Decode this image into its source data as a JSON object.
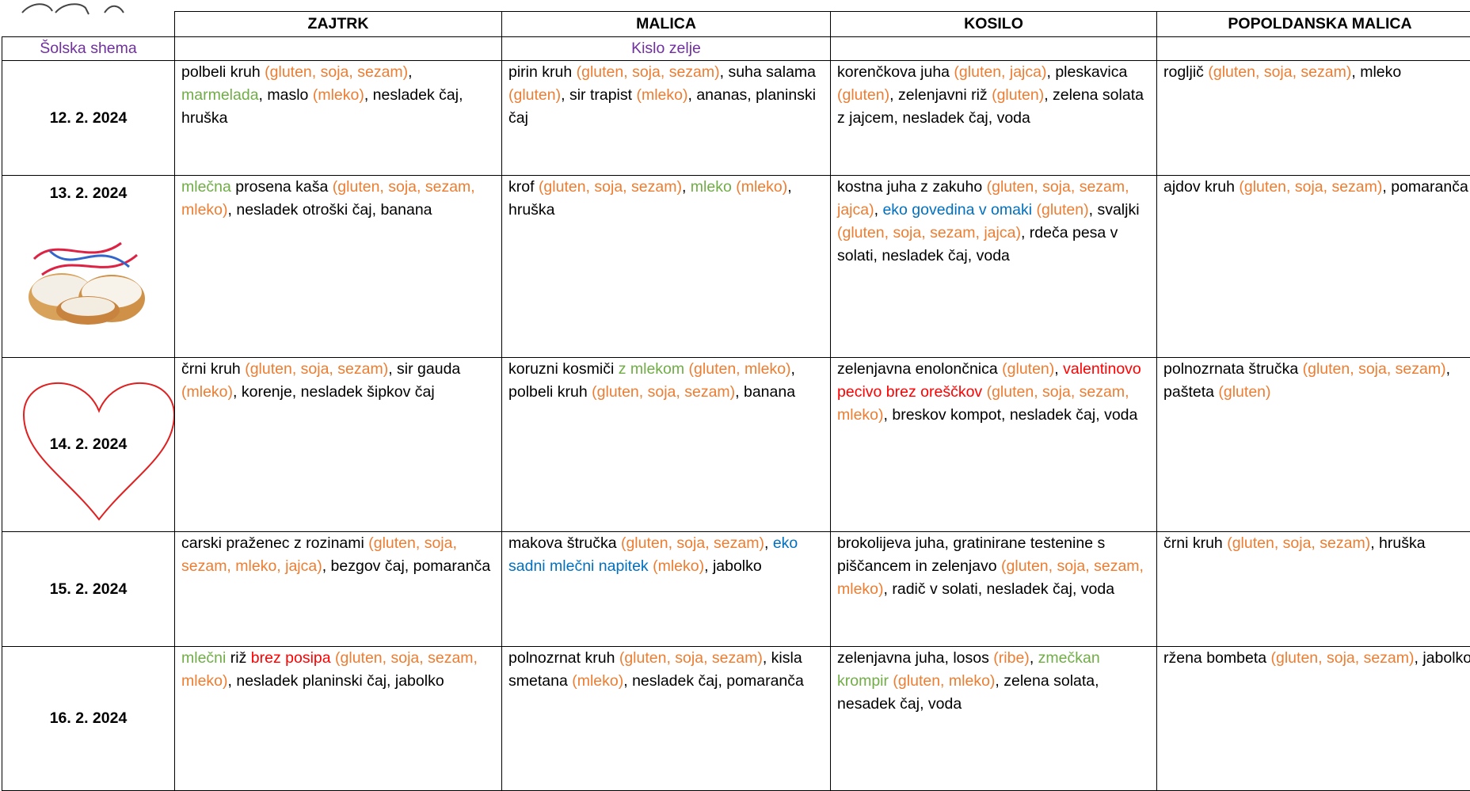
{
  "text_color": "#000000",
  "header": [
    "ZAJTRK",
    "MALICA",
    "KOSILO",
    "POPOLDANSKA MALICA"
  ],
  "scheme": {
    "label": "Šolska shema",
    "malica": "Kislo zelje",
    "color": "#7030a0"
  },
  "rows": [
    {
      "date": "12. 2. 2024",
      "cells": [
        [
          {
            "text": "polbeli kruh "
          },
          {
            "text": "(gluten, soja, sezam)",
            "color": "#ed7d31"
          },
          {
            "text": ", "
          },
          {
            "text": "marmelada",
            "color": "#70ad47"
          },
          {
            "text": ", maslo "
          },
          {
            "text": "(mleko)",
            "color": "#ed7d31"
          },
          {
            "text": ", nesladek čaj, hruška"
          }
        ],
        [
          {
            "text": "pirin kruh "
          },
          {
            "text": "(gluten, soja, sezam)",
            "color": "#ed7d31"
          },
          {
            "text": ", suha salama "
          },
          {
            "text": "(gluten)",
            "color": "#ed7d31"
          },
          {
            "text": ", sir trapist "
          },
          {
            "text": "(mleko)",
            "color": "#ed7d31"
          },
          {
            "text": ", ananas, planinski čaj"
          }
        ],
        [
          {
            "text": "korenčkova juha "
          },
          {
            "text": "(gluten, jajca)",
            "color": "#ed7d31"
          },
          {
            "text": ", pleskavica "
          },
          {
            "text": "(gluten)",
            "color": "#ed7d31"
          },
          {
            "text": ", zelenjavni riž "
          },
          {
            "text": "(gluten)",
            "color": "#ed7d31"
          },
          {
            "text": ", zelena solata z jajcem, nesladek čaj, voda"
          }
        ],
        [
          {
            "text": "rogljič "
          },
          {
            "text": "(gluten, soja, sezam)",
            "color": "#ed7d31"
          },
          {
            "text": ", mleko"
          }
        ]
      ]
    },
    {
      "date": "13. 2. 2024",
      "cells": [
        [
          {
            "text": "mlečna",
            "color": "#70ad47"
          },
          {
            "text": " prosena kaša "
          },
          {
            "text": "(gluten, soja, sezam, mleko)",
            "color": "#ed7d31"
          },
          {
            "text": ", nesladek otroški čaj, banana"
          }
        ],
        [
          {
            "text": "krof "
          },
          {
            "text": "(gluten, soja, sezam)",
            "color": "#ed7d31"
          },
          {
            "text": ", "
          },
          {
            "text": "mleko",
            "color": "#70ad47"
          },
          {
            "text": " (mleko)",
            "color": "#ed7d31"
          },
          {
            "text": ", hruška"
          }
        ],
        [
          {
            "text": "kostna juha z zakuho "
          },
          {
            "text": "(gluten, soja, sezam, jajca)",
            "color": "#ed7d31"
          },
          {
            "text": ",  "
          },
          {
            "text": "eko govedina v omaki",
            "color": "#0070c0"
          },
          {
            "text": " (gluten)",
            "color": "#ed7d31"
          },
          {
            "text": ", svaljki "
          },
          {
            "text": "(gluten, soja, sezam, jajca)",
            "color": "#ed7d31"
          },
          {
            "text": ", rdeča pesa v solati, nesladek čaj, voda"
          }
        ],
        [
          {
            "text": "ajdov kruh "
          },
          {
            "text": "(gluten, soja, sezam)",
            "color": "#ed7d31"
          },
          {
            "text": ", pomaranča"
          }
        ]
      ]
    },
    {
      "date": "14. 2. 2024",
      "cells": [
        [
          {
            "text": "črni kruh "
          },
          {
            "text": "(gluten, soja, sezam)",
            "color": "#ed7d31"
          },
          {
            "text": ", sir gauda "
          },
          {
            "text": "(mleko)",
            "color": "#ed7d31"
          },
          {
            "text": ", korenje, nesladek šipkov čaj"
          }
        ],
        [
          {
            "text": "koruzni kosmiči "
          },
          {
            "text": "z mlekom",
            "color": "#70ad47"
          },
          {
            "text": " (gluten, mleko)",
            "color": "#ed7d31"
          },
          {
            "text": ", polbeli kruh "
          },
          {
            "text": "(gluten, soja, sezam)",
            "color": "#ed7d31"
          },
          {
            "text": ", banana"
          }
        ],
        [
          {
            "text": "zelenjavna enolončnica "
          },
          {
            "text": "(gluten)",
            "color": "#ed7d31"
          },
          {
            "text": ", "
          },
          {
            "text": "valentinovo pecivo brez oreščkov",
            "color": "#ff0000"
          },
          {
            "text": " (gluten, soja, sezam, mleko)",
            "color": "#ed7d31"
          },
          {
            "text": ", breskov kompot, nesladek čaj, voda"
          }
        ],
        [
          {
            "text": "polnozrnata štručka "
          },
          {
            "text": "(gluten, soja, sezam)",
            "color": "#ed7d31"
          },
          {
            "text": ", pašteta "
          },
          {
            "text": "(gluten)",
            "color": "#ed7d31"
          }
        ]
      ]
    },
    {
      "date": "15. 2. 2024",
      "cells": [
        [
          {
            "text": "carski praženec z rozinami "
          },
          {
            "text": "(gluten, soja, sezam, mleko, jajca)",
            "color": "#ed7d31"
          },
          {
            "text": ", bezgov čaj, pomaranča"
          }
        ],
        [
          {
            "text": "makova štručka "
          },
          {
            "text": "(gluten, soja, sezam)",
            "color": "#ed7d31"
          },
          {
            "text": ", "
          },
          {
            "text": "eko sadni mlečni napitek",
            "color": "#0070c0"
          },
          {
            "text": " (mleko)",
            "color": "#ed7d31"
          },
          {
            "text": ", jabolko"
          }
        ],
        [
          {
            "text": "brokolijeva juha, gratinirane testenine s piščancem in zelenjavo "
          },
          {
            "text": "(gluten, soja, sezam, mleko)",
            "color": "#ed7d31"
          },
          {
            "text": ", radič v solati, nesladek čaj, voda"
          }
        ],
        [
          {
            "text": "črni kruh "
          },
          {
            "text": "(gluten, soja, sezam)",
            "color": "#ed7d31"
          },
          {
            "text": ", hruška"
          }
        ]
      ]
    },
    {
      "date": "16. 2. 2024",
      "cells": [
        [
          {
            "text": "mlečni",
            "color": "#70ad47"
          },
          {
            "text": " riž "
          },
          {
            "text": "brez posipa",
            "color": "#ff0000"
          },
          {
            "text": " (gluten, soja, sezam, mleko)",
            "color": "#ed7d31"
          },
          {
            "text": ", nesladek planinski čaj, jabolko"
          }
        ],
        [
          {
            "text": "polnozrnat kruh "
          },
          {
            "text": "(gluten, soja, sezam)",
            "color": "#ed7d31"
          },
          {
            "text": ", kisla smetana "
          },
          {
            "text": "(mleko)",
            "color": "#ed7d31"
          },
          {
            "text": ", nesladek čaj, pomaranča"
          }
        ],
        [
          {
            "text": "zelenjavna juha, losos "
          },
          {
            "text": "(ribe)",
            "color": "#ed7d31"
          },
          {
            "text": ", "
          },
          {
            "text": "zmečkan krompir",
            "color": "#70ad47"
          },
          {
            "text": " (gluten, mleko)",
            "color": "#ed7d31"
          },
          {
            "text": ", zelena solata, nesadek čaj, voda"
          }
        ],
        [
          {
            "text": "ržena bombeta "
          },
          {
            "text": "(gluten, soja, sezam)",
            "color": "#ed7d31"
          },
          {
            "text": ", jabolko"
          }
        ]
      ]
    }
  ]
}
